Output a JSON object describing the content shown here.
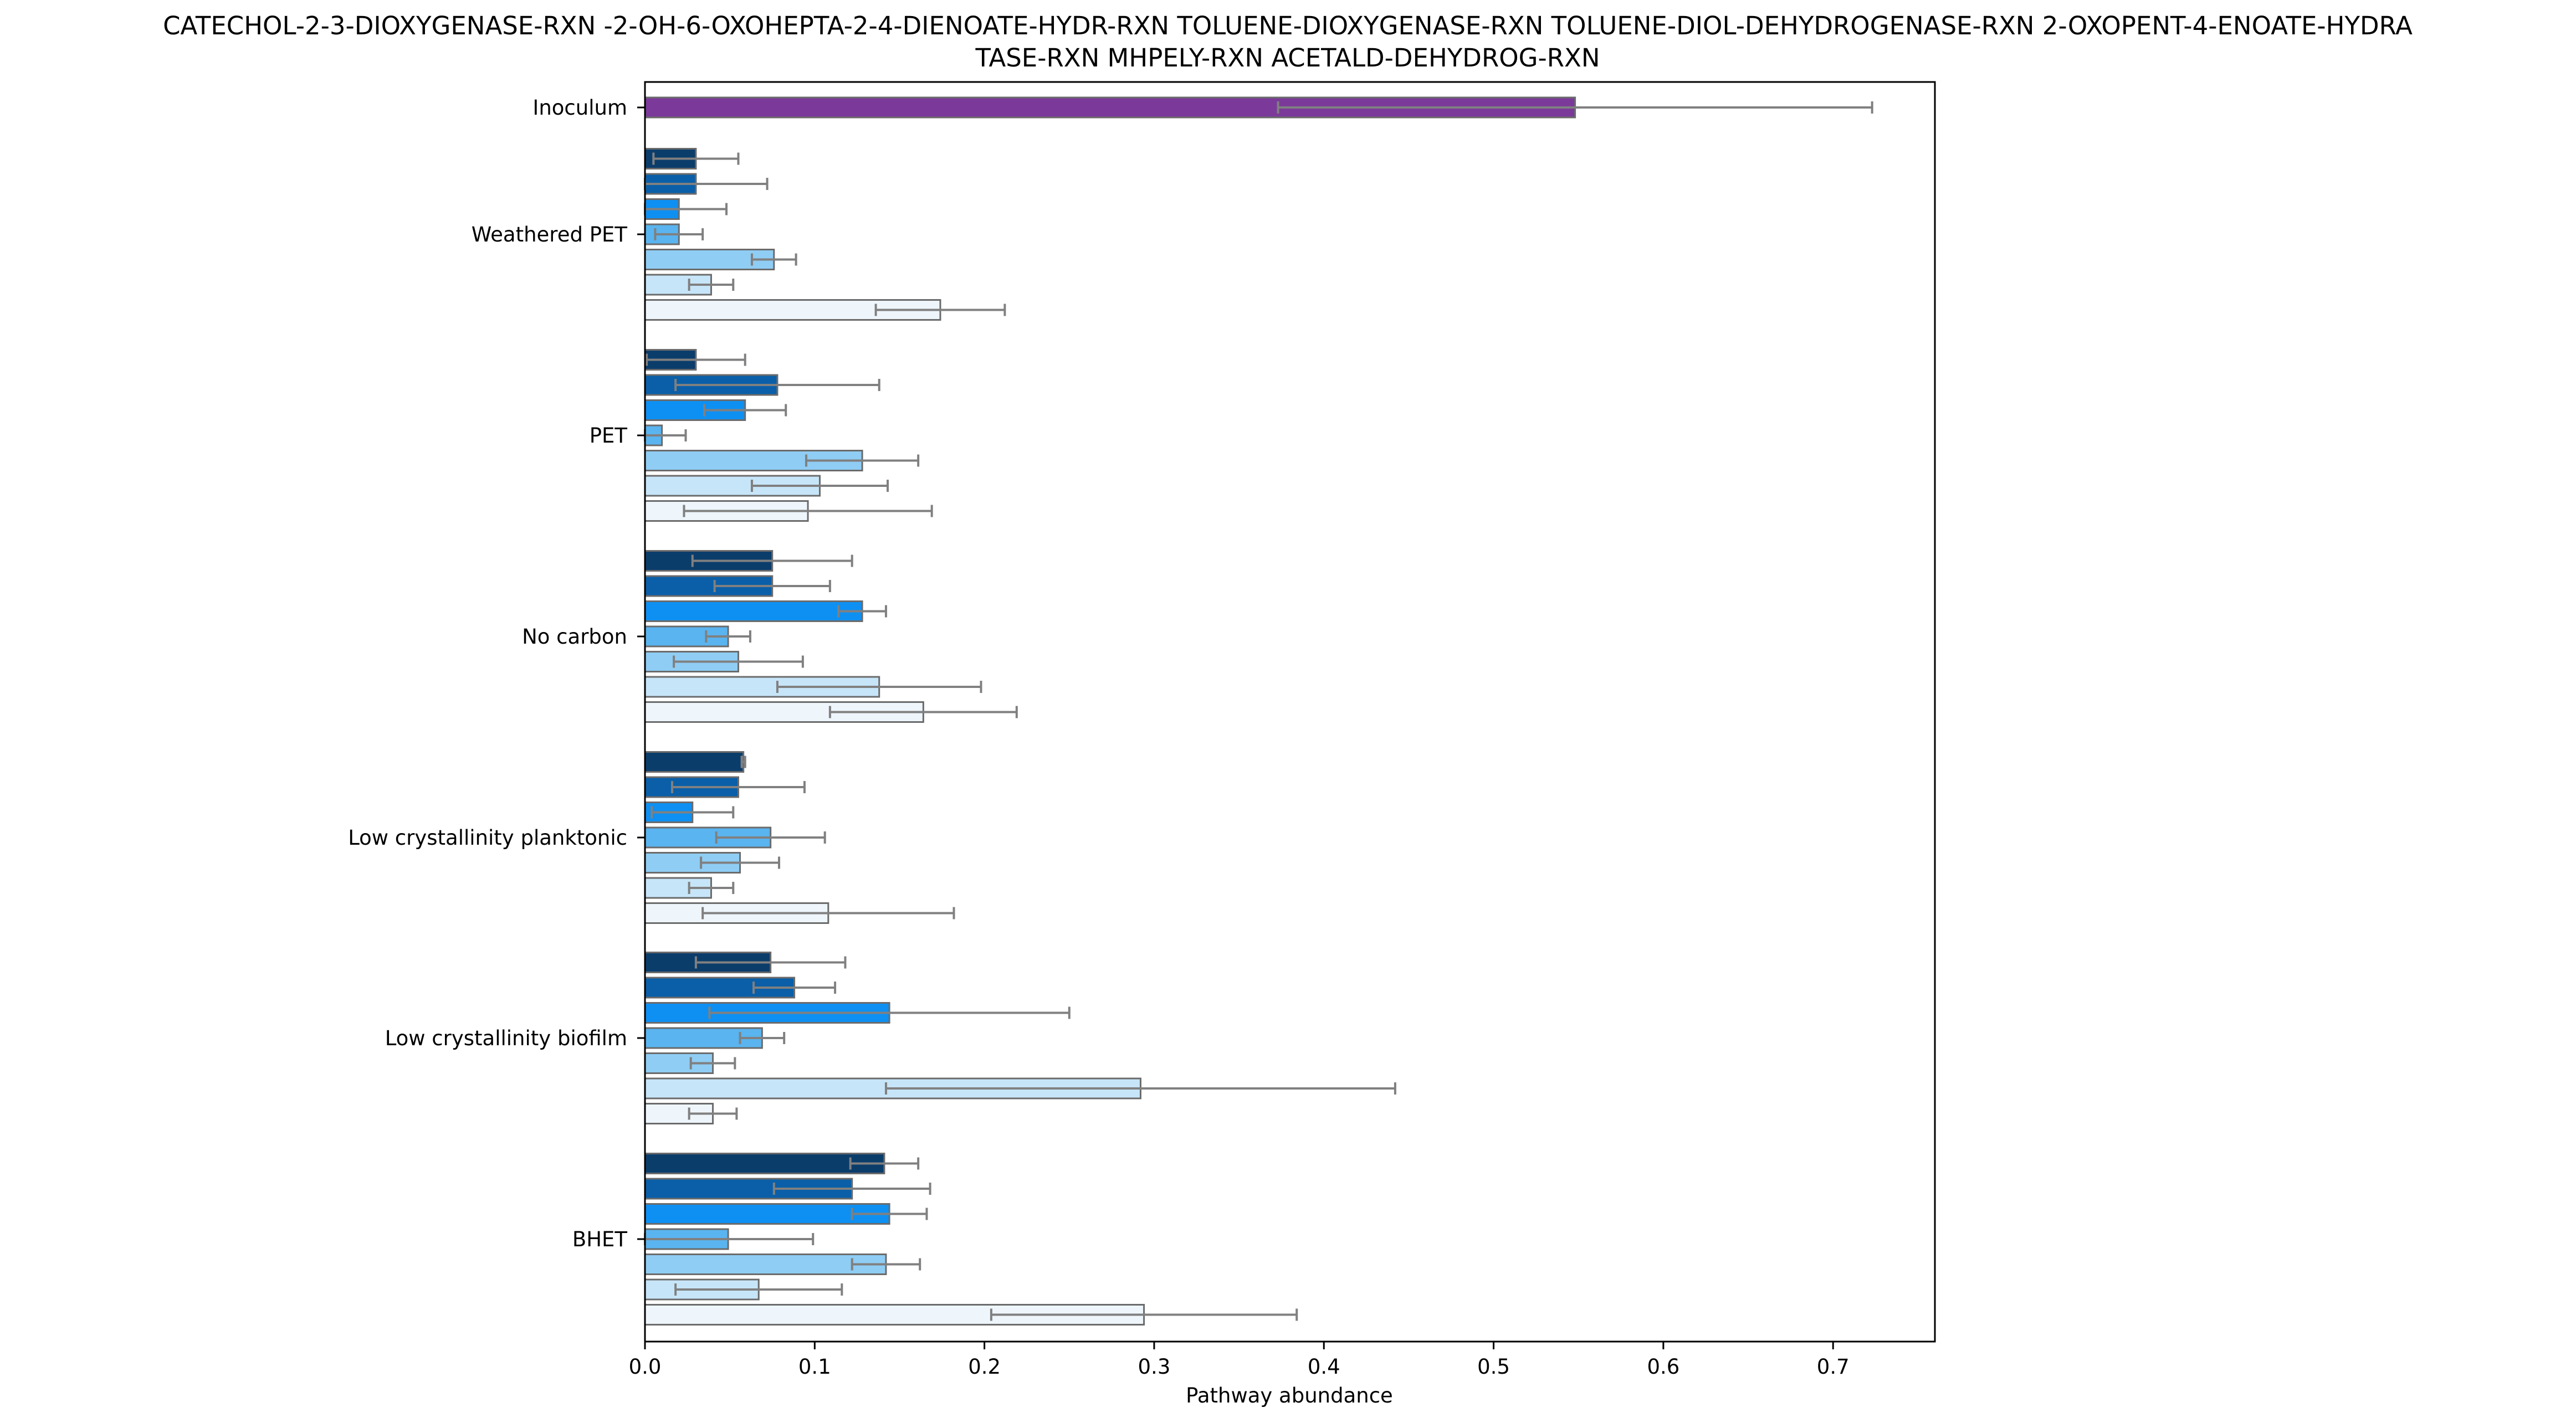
{
  "chart_data": {
    "type": "bar",
    "orientation": "horizontal",
    "title_lines": [
      "CATECHOL-2-3-DIOXYGENASE-RXN -2-OH-6-OXOHEPTA-2-4-DIENOATE-HYDR-RXN TOLUENE-DIOXYGENASE-RXN TOLUENE-DIOL-DEHYDROGENASE-RXN  2-OXOPENT-4-ENOATE-HYDRA",
      "TASE-RXN MHPELY-RXN ACETALD-DEHYDROG-RXN"
    ],
    "xlabel": "Pathway abundance",
    "ylabel": "",
    "xlim": [
      0,
      0.76
    ],
    "xticks": [
      "0.0",
      "0.1",
      "0.2",
      "0.3",
      "0.4",
      "0.5",
      "0.6",
      "0.7"
    ],
    "grid": false,
    "error_bar_color": "#808080",
    "bar_edge_color": "#6b6b6b",
    "series_colors": [
      "#0b3d6b",
      "#0a5fa8",
      "#0e90f2",
      "#5ab4ef",
      "#8fcdf4",
      "#c7e5f8",
      "#eef6fc"
    ],
    "inoculum_color": "#7b3a99",
    "groups": [
      {
        "label": "Inoculum",
        "bars": [
          {
            "value": 0.548,
            "err": 0.175
          }
        ]
      },
      {
        "label": "Weathered PET",
        "bars": [
          {
            "value": 0.03,
            "err": 0.025
          },
          {
            "value": 0.03,
            "err": 0.042
          },
          {
            "value": 0.02,
            "err": 0.028
          },
          {
            "value": 0.02,
            "err": 0.014
          },
          {
            "value": 0.076,
            "err": 0.013
          },
          {
            "value": 0.039,
            "err": 0.013
          },
          {
            "value": 0.174,
            "err": 0.038
          }
        ]
      },
      {
        "label": "PET",
        "bars": [
          {
            "value": 0.03,
            "err": 0.029
          },
          {
            "value": 0.078,
            "err": 0.06
          },
          {
            "value": 0.059,
            "err": 0.024
          },
          {
            "value": 0.01,
            "err": 0.014
          },
          {
            "value": 0.128,
            "err": 0.033
          },
          {
            "value": 0.103,
            "err": 0.04
          },
          {
            "value": 0.096,
            "err": 0.073
          }
        ]
      },
      {
        "label": "No carbon",
        "bars": [
          {
            "value": 0.075,
            "err": 0.047
          },
          {
            "value": 0.075,
            "err": 0.034
          },
          {
            "value": 0.128,
            "err": 0.014
          },
          {
            "value": 0.049,
            "err": 0.013
          },
          {
            "value": 0.055,
            "err": 0.038
          },
          {
            "value": 0.138,
            "err": 0.06
          },
          {
            "value": 0.164,
            "err": 0.055
          }
        ]
      },
      {
        "label": "Low crystallinity planktonic",
        "bars": [
          {
            "value": 0.058,
            "err": 0.001
          },
          {
            "value": 0.055,
            "err": 0.039
          },
          {
            "value": 0.028,
            "err": 0.024
          },
          {
            "value": 0.074,
            "err": 0.032
          },
          {
            "value": 0.056,
            "err": 0.023
          },
          {
            "value": 0.039,
            "err": 0.013
          },
          {
            "value": 0.108,
            "err": 0.074
          }
        ]
      },
      {
        "label": "Low crystallinity biofilm",
        "bars": [
          {
            "value": 0.074,
            "err": 0.044
          },
          {
            "value": 0.088,
            "err": 0.024
          },
          {
            "value": 0.144,
            "err": 0.106
          },
          {
            "value": 0.069,
            "err": 0.013
          },
          {
            "value": 0.04,
            "err": 0.013
          },
          {
            "value": 0.292,
            "err": 0.15
          },
          {
            "value": 0.04,
            "err": 0.014
          }
        ]
      },
      {
        "label": "BHET",
        "bars": [
          {
            "value": 0.141,
            "err": 0.02
          },
          {
            "value": 0.122,
            "err": 0.046
          },
          {
            "value": 0.144,
            "err": 0.022
          },
          {
            "value": 0.049,
            "err": 0.05
          },
          {
            "value": 0.142,
            "err": 0.02
          },
          {
            "value": 0.067,
            "err": 0.049
          },
          {
            "value": 0.294,
            "err": 0.09
          }
        ]
      }
    ]
  }
}
